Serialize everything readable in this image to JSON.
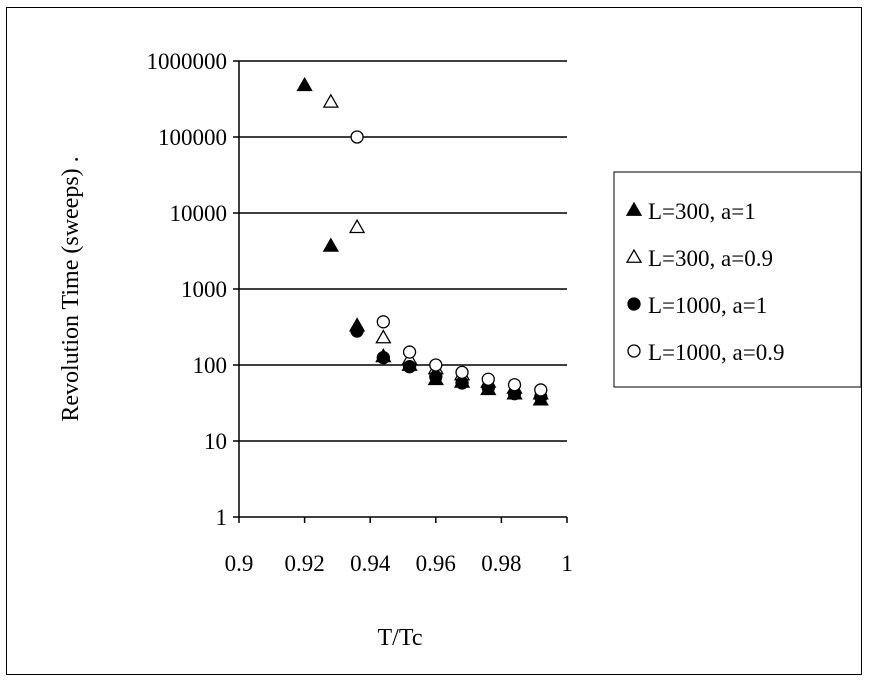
{
  "chart_data": {
    "type": "scatter",
    "title": "",
    "xlabel": "T/Tc",
    "ylabel": "Revolution Time (sweeps) .",
    "xlim": [
      0.9,
      1
    ],
    "ylim": [
      1,
      1000000
    ],
    "yscale": "log",
    "x_ticks": [
      "0.9",
      "0.92",
      "0.94",
      "0.96",
      "0.98",
      "1"
    ],
    "y_ticks": [
      "1",
      "10",
      "100",
      "1000",
      "10000",
      "100000",
      "1000000"
    ],
    "grid": "horizontal major",
    "legend_position": "right",
    "series": [
      {
        "name": "L=300, a=1",
        "marker": "filled-triangle",
        "points": [
          [
            0.92,
            480000
          ],
          [
            0.928,
            3700
          ],
          [
            0.936,
            330
          ],
          [
            0.944,
            130
          ],
          [
            0.952,
            100
          ],
          [
            0.96,
            65
          ],
          [
            0.968,
            60
          ],
          [
            0.976,
            48
          ],
          [
            0.984,
            42
          ],
          [
            0.992,
            35
          ]
        ]
      },
      {
        "name": "L=300, a=0.9",
        "marker": "open-triangle",
        "points": [
          [
            0.928,
            290000
          ],
          [
            0.936,
            6500
          ],
          [
            0.944,
            230
          ],
          [
            0.952,
            120
          ],
          [
            0.96,
            90
          ],
          [
            0.968,
            75
          ],
          [
            0.976,
            60
          ],
          [
            0.984,
            50
          ],
          [
            0.992,
            42
          ]
        ]
      },
      {
        "name": "L=1000, a=1",
        "marker": "filled-circle",
        "points": [
          [
            0.936,
            280
          ],
          [
            0.944,
            125
          ],
          [
            0.952,
            95
          ],
          [
            0.96,
            70
          ],
          [
            0.968,
            58
          ],
          [
            0.976,
            50
          ],
          [
            0.984,
            42
          ],
          [
            0.992,
            38
          ]
        ]
      },
      {
        "name": "L=1000, a=0.9",
        "marker": "open-circle",
        "points": [
          [
            0.936,
            100000
          ],
          [
            0.944,
            370
          ],
          [
            0.952,
            148
          ],
          [
            0.96,
            100
          ],
          [
            0.968,
            80
          ],
          [
            0.976,
            65
          ],
          [
            0.984,
            55
          ],
          [
            0.992,
            47
          ]
        ]
      }
    ]
  }
}
